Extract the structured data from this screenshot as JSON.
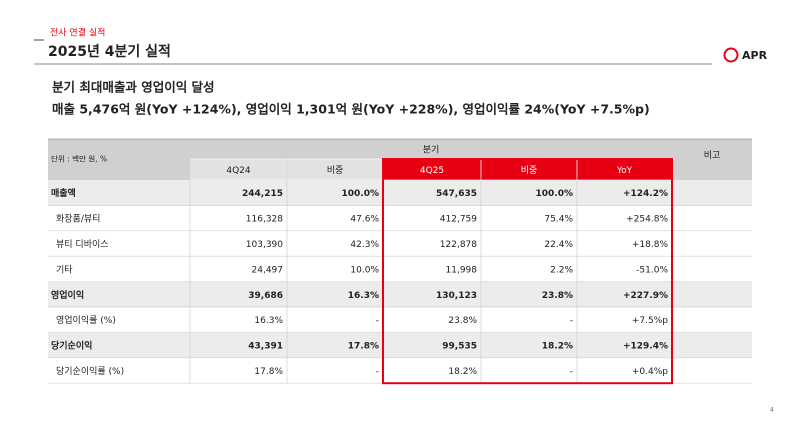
{
  "header": {
    "section": "전사 연결 실적",
    "title": "2025년 4분기 실적",
    "logo": "APR"
  },
  "summary": {
    "headline": "분기 최대매출과 영업이익 달성",
    "detail": "매출 5,476억 원(YoY +124%), 영업이익 1,301억 원(YoY +228%), 영업이익률 24%(YoY +7.5%p)"
  },
  "table": {
    "unit": "단위 : 백만 원, %",
    "group": "분기",
    "note": "비고",
    "columns": [
      "4Q24",
      "비중",
      "4Q25",
      "비중",
      "YoY"
    ],
    "rows": [
      [
        "매출액",
        "244,215",
        "100.0%",
        "547,635",
        "100.0%",
        "+124.2%"
      ],
      [
        "화장품/뷰티",
        "116,328",
        "47.6%",
        "412,759",
        "75.4%",
        "+254.8%"
      ],
      [
        "뷰티 디바이스",
        "103,390",
        "42.3%",
        "122,878",
        "22.4%",
        "+18.8%"
      ],
      [
        "기타",
        "24,497",
        "10.0%",
        "11,998",
        "2.2%",
        "-51.0%"
      ],
      [
        "영업이익",
        "39,686",
        "16.3%",
        "130,123",
        "23.8%",
        "+227.9%"
      ],
      [
        "영업이익률 (%)",
        "16.3%",
        "-",
        "23.8%",
        "-",
        "+7.5%p"
      ],
      [
        "당기순이익",
        "43,391",
        "17.8%",
        "99,535",
        "18.2%",
        "+129.4%"
      ],
      [
        "당기순이익률 (%)",
        "17.8%",
        "-",
        "18.2%",
        "-",
        "+0.4%p"
      ]
    ]
  },
  "page_number": "4"
}
